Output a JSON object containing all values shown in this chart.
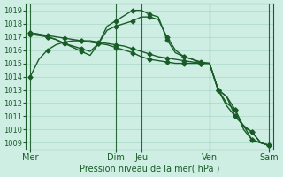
{
  "background_color": "#ceeee4",
  "grid_color": "#a8d8c8",
  "line_color": "#1a5c28",
  "ylim": [
    1008.5,
    1019.5
  ],
  "yticks": [
    1009,
    1010,
    1011,
    1012,
    1013,
    1014,
    1015,
    1016,
    1017,
    1018,
    1019
  ],
  "xlabel": "Pression niveau de la mer( hPa )",
  "xlabel_color": "#1a5c28",
  "day_labels": [
    "Mer",
    "Dim",
    "Jeu",
    "Ven",
    "Sam"
  ],
  "day_positions": [
    0,
    10,
    13,
    21,
    28
  ],
  "vline_x": [
    0,
    10,
    13,
    21,
    28
  ],
  "series": [
    {
      "x": [
        0,
        1,
        2,
        3,
        4,
        5,
        6,
        7,
        8,
        9,
        10,
        11,
        12,
        13,
        14,
        15,
        16,
        17,
        18,
        19,
        20,
        21,
        22,
        23,
        24,
        25,
        26,
        27,
        28
      ],
      "y": [
        1014.0,
        1015.3,
        1016.0,
        1016.4,
        1016.6,
        1016.7,
        1016.7,
        1016.7,
        1016.6,
        1016.5,
        1016.4,
        1016.3,
        1016.1,
        1015.9,
        1015.7,
        1015.5,
        1015.4,
        1015.3,
        1015.2,
        1015.1,
        1015.0,
        1015.0,
        1013.0,
        1012.5,
        1011.0,
        1010.3,
        1009.8,
        1009.0,
        1008.8
      ],
      "marker": "D",
      "markersize": 2.5,
      "linewidth": 1.0,
      "markevery": [
        0,
        2,
        4,
        6,
        8,
        10,
        12,
        14,
        16,
        18,
        20,
        22,
        24,
        26,
        28
      ]
    },
    {
      "x": [
        0,
        1,
        2,
        3,
        4,
        5,
        6,
        7,
        8,
        9,
        10,
        11,
        12,
        13,
        14,
        15,
        16,
        17,
        18,
        19,
        20,
        21,
        22,
        23,
        24,
        25,
        26,
        27,
        28
      ],
      "y": [
        1017.3,
        1017.2,
        1017.1,
        1017.0,
        1016.9,
        1016.8,
        1016.7,
        1016.6,
        1016.5,
        1016.4,
        1016.2,
        1016.0,
        1015.8,
        1015.5,
        1015.3,
        1015.2,
        1015.1,
        1015.0,
        1015.0,
        1015.0,
        1015.0,
        1015.0,
        1013.0,
        1012.5,
        1011.5,
        1010.2,
        1009.8,
        1009.0,
        1008.8
      ],
      "marker": "D",
      "markersize": 2.5,
      "linewidth": 1.0,
      "markevery": [
        0,
        2,
        4,
        6,
        8,
        10,
        12,
        14,
        16,
        18,
        20,
        22,
        24,
        26,
        28
      ]
    },
    {
      "x": [
        0,
        1,
        2,
        3,
        4,
        5,
        6,
        7,
        8,
        9,
        10,
        11,
        12,
        13,
        14,
        15,
        16,
        17,
        18,
        19,
        20,
        21,
        22,
        23,
        24,
        25,
        26,
        27,
        28
      ],
      "y": [
        1017.2,
        1017.1,
        1017.0,
        1016.8,
        1016.5,
        1016.3,
        1016.1,
        1015.9,
        1016.5,
        1017.5,
        1017.8,
        1018.0,
        1018.2,
        1018.5,
        1018.5,
        1018.3,
        1017.0,
        1016.0,
        1015.5,
        1015.3,
        1015.1,
        1015.0,
        1013.0,
        1011.8,
        1011.0,
        1010.3,
        1009.2,
        1009.0,
        1008.8
      ],
      "marker": "D",
      "markersize": 2.5,
      "linewidth": 1.0,
      "markevery": [
        0,
        2,
        4,
        6,
        8,
        10,
        12,
        14,
        16,
        18,
        20,
        22,
        24,
        26,
        28
      ]
    },
    {
      "x": [
        0,
        1,
        2,
        3,
        4,
        5,
        6,
        7,
        8,
        9,
        10,
        11,
        12,
        13,
        14,
        15,
        16,
        17,
        18,
        19,
        20,
        21,
        22,
        23,
        24,
        25,
        26,
        27,
        28
      ],
      "y": [
        1017.3,
        1017.2,
        1017.0,
        1016.8,
        1016.5,
        1016.2,
        1015.9,
        1015.6,
        1016.5,
        1017.8,
        1018.2,
        1018.6,
        1019.0,
        1019.0,
        1018.7,
        1018.5,
        1016.8,
        1015.8,
        1015.5,
        1015.3,
        1015.0,
        1015.0,
        1013.0,
        1012.0,
        1011.5,
        1010.0,
        1009.2,
        1009.0,
        1008.8
      ],
      "marker": "D",
      "markersize": 2.5,
      "linewidth": 1.0,
      "markevery": [
        0,
        2,
        4,
        6,
        8,
        10,
        12,
        14,
        16,
        18,
        20,
        22,
        24,
        26,
        28
      ]
    }
  ]
}
